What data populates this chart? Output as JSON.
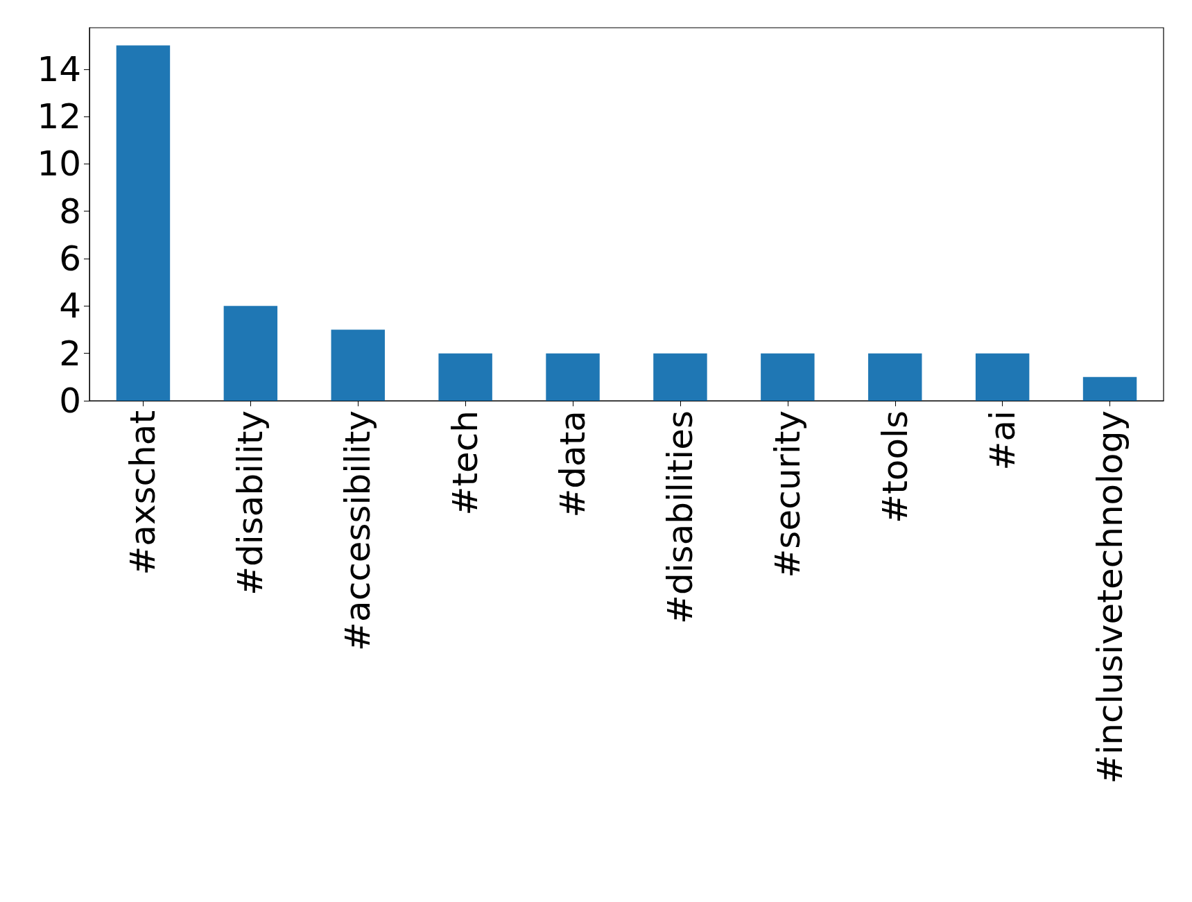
{
  "chart_data": {
    "type": "bar",
    "categories": [
      "#axschat",
      "#disability",
      "#accessibility",
      "#tech",
      "#data",
      "#disabilities",
      "#security",
      "#tools",
      "#ai",
      "#inclusivetechnology"
    ],
    "values": [
      15,
      4,
      3,
      2,
      2,
      2,
      2,
      2,
      2,
      1
    ],
    "color": "#1f77b4",
    "ylim": [
      0,
      15.75
    ],
    "yticks": [
      0,
      2,
      4,
      6,
      8,
      10,
      12,
      14
    ],
    "grid": false
  }
}
